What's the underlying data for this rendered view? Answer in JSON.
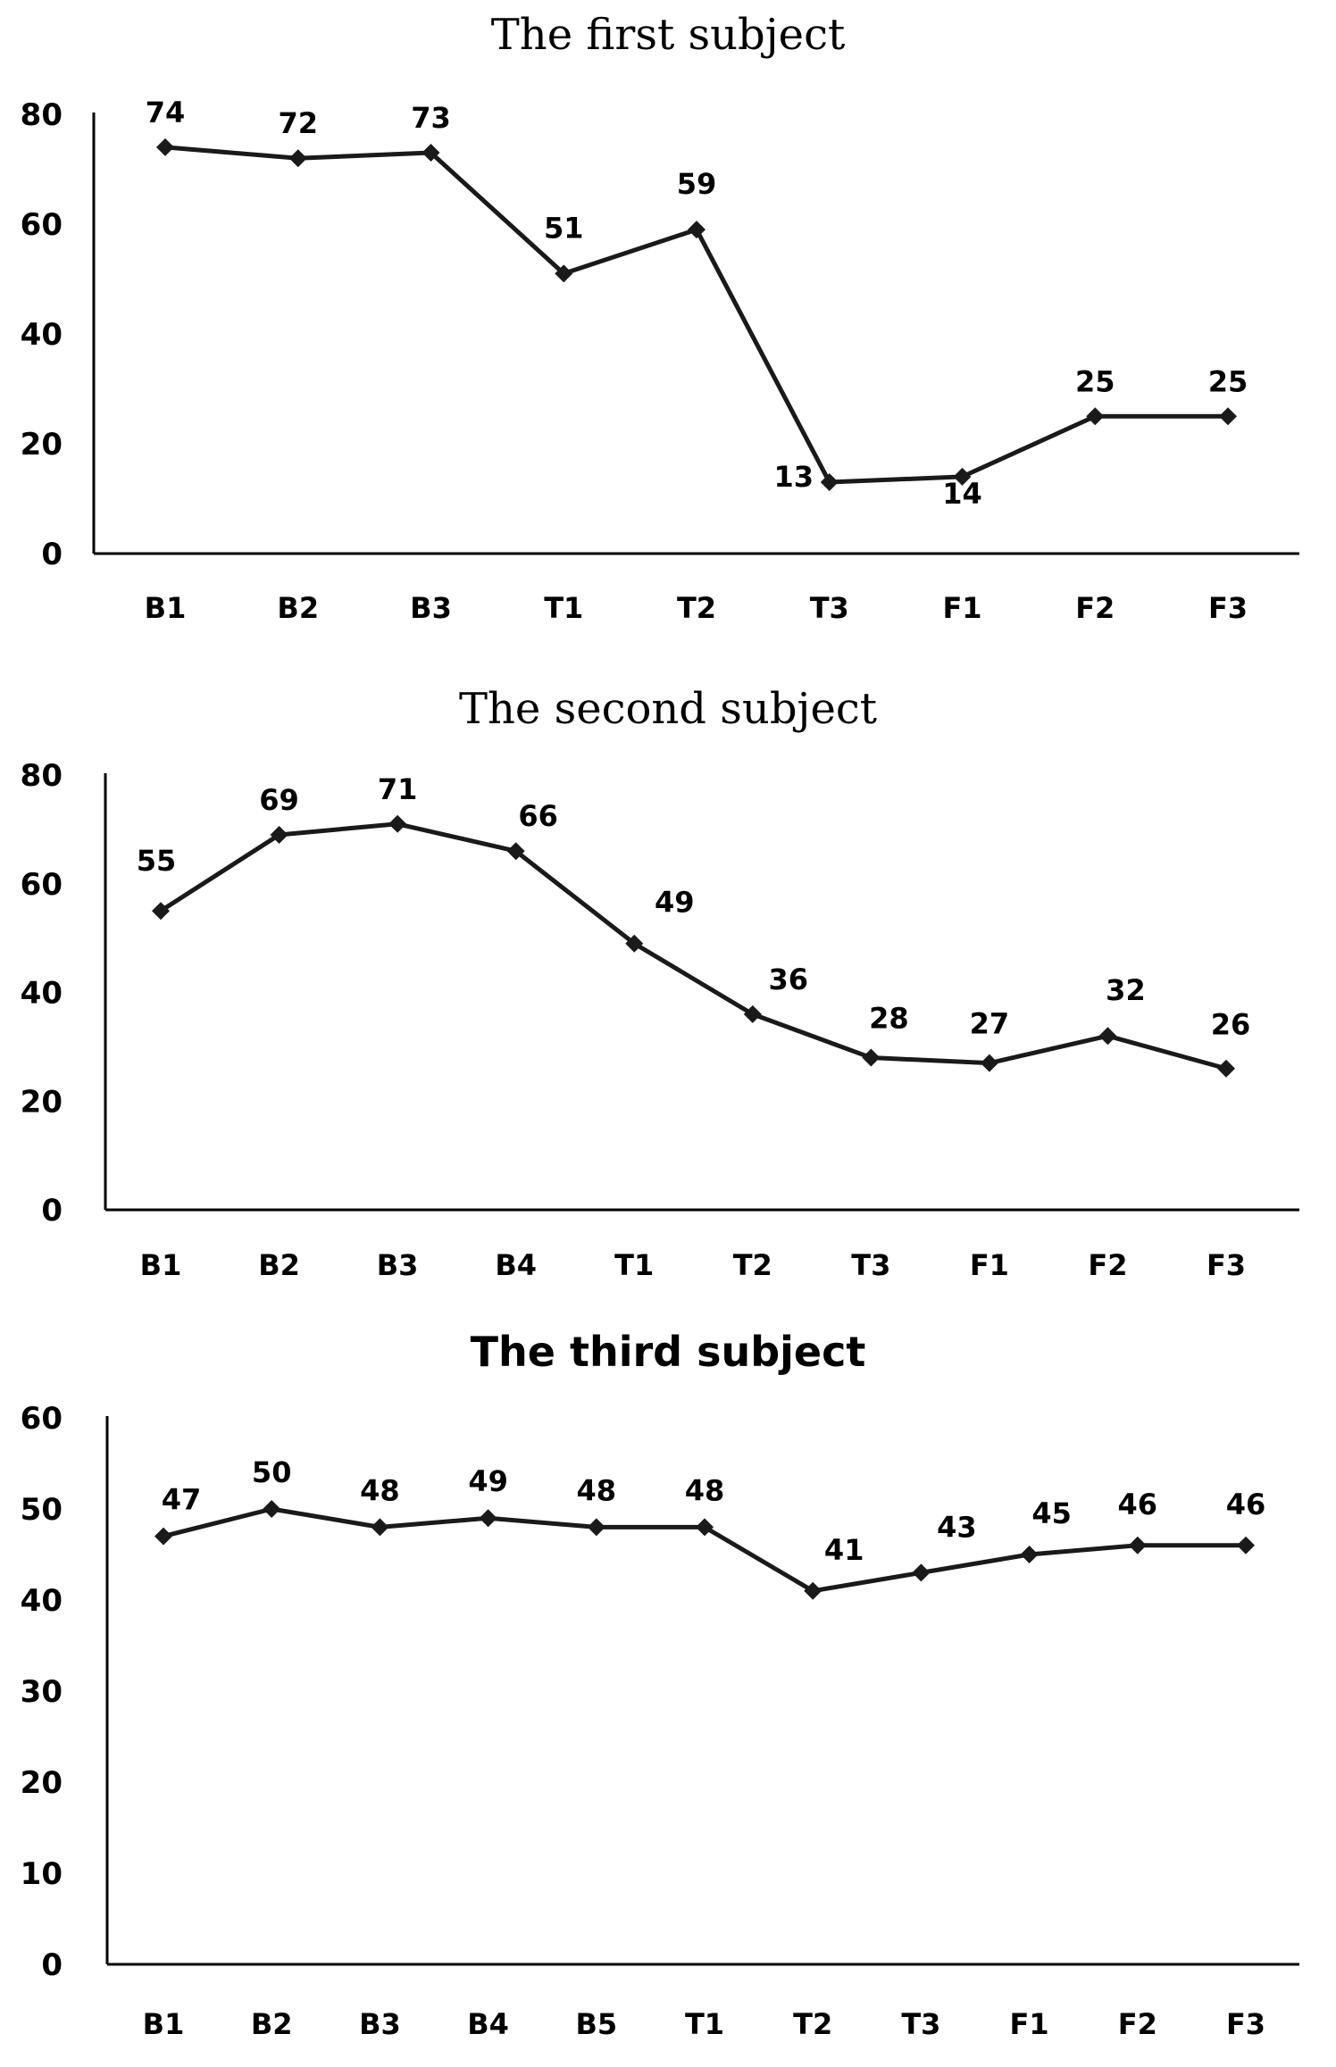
{
  "chart_data": [
    {
      "type": "line",
      "title": "The first subject",
      "categories": [
        "B1",
        "B2",
        "B3",
        "T1",
        "T2",
        "T3",
        "F1",
        "F2",
        "F3"
      ],
      "values": [
        74,
        72,
        73,
        51,
        59,
        13,
        14,
        25,
        25
      ],
      "ylim": [
        0,
        80
      ],
      "yticks": [
        0,
        20,
        40,
        60,
        80
      ],
      "xlabel": "",
      "ylabel": "",
      "grid": false,
      "line_color": "#1a1a1a"
    },
    {
      "type": "line",
      "title": "The second subject",
      "categories": [
        "B1",
        "B2",
        "B3",
        "B4",
        "T1",
        "T2",
        "T3",
        "F1",
        "F2",
        "F3"
      ],
      "values": [
        55,
        69,
        71,
        66,
        49,
        36,
        28,
        27,
        32,
        26
      ],
      "ylim": [
        0,
        80
      ],
      "yticks": [
        0,
        20,
        40,
        60,
        80
      ],
      "xlabel": "",
      "ylabel": "",
      "grid": false,
      "line_color": "#1a1a1a"
    },
    {
      "type": "line",
      "title": "The third subject",
      "categories": [
        "B1",
        "B2",
        "B3",
        "B4",
        "B5",
        "T1",
        "T2",
        "T3",
        "F1",
        "F2",
        "F3"
      ],
      "values": [
        47,
        50,
        48,
        49,
        48,
        48,
        41,
        43,
        45,
        46,
        46
      ],
      "ylim": [
        0,
        60
      ],
      "yticks": [
        0,
        10,
        20,
        30,
        40,
        50,
        60
      ],
      "xlabel": "",
      "ylabel": "",
      "grid": false,
      "line_color": "#1a1a1a"
    }
  ]
}
